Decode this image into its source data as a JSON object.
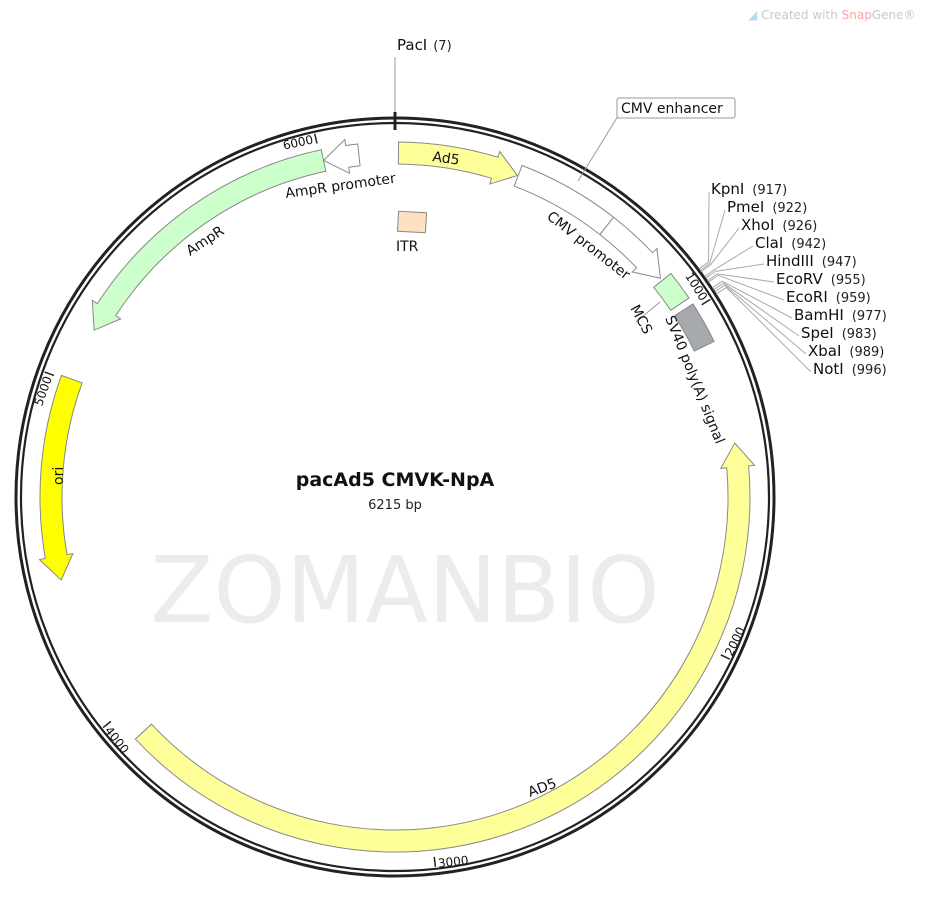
{
  "credit": {
    "prefix": "Created with ",
    "brand": "Snap",
    "suffix": "Gene®",
    "icon": "snapgene-logo-icon"
  },
  "watermark": "ZOMANBIO",
  "plasmid": {
    "name": "pacAd5 CMVK-NpA",
    "size_label": "6215 bp",
    "length_bp": 6215
  },
  "ticks": [
    {
      "bp": 1000,
      "label": "1000"
    },
    {
      "bp": 2000,
      "label": "2000"
    },
    {
      "bp": 3000,
      "label": "3000"
    },
    {
      "bp": 4000,
      "label": "4000"
    },
    {
      "bp": 5000,
      "label": "5000"
    },
    {
      "bp": 6000,
      "label": "6000"
    }
  ],
  "features": [
    {
      "id": "ad5-left",
      "label": "Ad5",
      "start": 10,
      "end": 360,
      "direction": "forward",
      "color": "#ffff99"
    },
    {
      "id": "cmv-enhancer",
      "label": "CMV enhancer",
      "start": 362,
      "end": 656,
      "direction": "none",
      "color": "#ffffff"
    },
    {
      "id": "cmv-promoter",
      "label": "CMV promoter",
      "start": 656,
      "end": 872,
      "direction": "forward",
      "color": "#ffffff"
    },
    {
      "id": "mcs",
      "label": "MCS",
      "start": 880,
      "end": 965,
      "direction": "none",
      "color": "#ccffcc"
    },
    {
      "id": "sv40-polya",
      "label": "SV40 poly(A) signal",
      "start": 985,
      "end": 1105,
      "direction": "none",
      "color": "#a6a9ad"
    },
    {
      "id": "ad5-right",
      "label": "AD5",
      "start": 1398,
      "end": 3919,
      "direction": "reverse",
      "color": "#ffff99"
    },
    {
      "id": "ori",
      "label": "ori",
      "start": 4420,
      "end": 5007,
      "direction": "reverse",
      "color": "#ffff00"
    },
    {
      "id": "ampr",
      "label": "AmpR",
      "start": 5162,
      "end": 6008,
      "direction": "reverse",
      "color": "#ccffcc"
    },
    {
      "id": "ampr-promoter",
      "label": "AmpR promoter",
      "start": 6008,
      "end": 6111,
      "direction": "reverse",
      "color": "#ffffff"
    },
    {
      "id": "itr",
      "label": "ITR",
      "color": "#ffe0c0"
    }
  ],
  "sites": [
    {
      "name": "PacI",
      "pos": "(7)",
      "bp": 7
    },
    {
      "name": "KpnI",
      "pos": "(917)",
      "bp": 917
    },
    {
      "name": "PmeI",
      "pos": "(922)",
      "bp": 922
    },
    {
      "name": "XhoI",
      "pos": "(926)",
      "bp": 926
    },
    {
      "name": "ClaI",
      "pos": "(942)",
      "bp": 942
    },
    {
      "name": "HindIII",
      "pos": "(947)",
      "bp": 947
    },
    {
      "name": "EcoRV",
      "pos": "(955)",
      "bp": 955
    },
    {
      "name": "EcoRI",
      "pos": "(959)",
      "bp": 959
    },
    {
      "name": "BamHI",
      "pos": "(977)",
      "bp": 977
    },
    {
      "name": "SpeI",
      "pos": "(983)",
      "bp": 983
    },
    {
      "name": "XbaI",
      "pos": "(989)",
      "bp": 989
    },
    {
      "name": "NotI",
      "pos": "(996)",
      "bp": 996
    }
  ]
}
